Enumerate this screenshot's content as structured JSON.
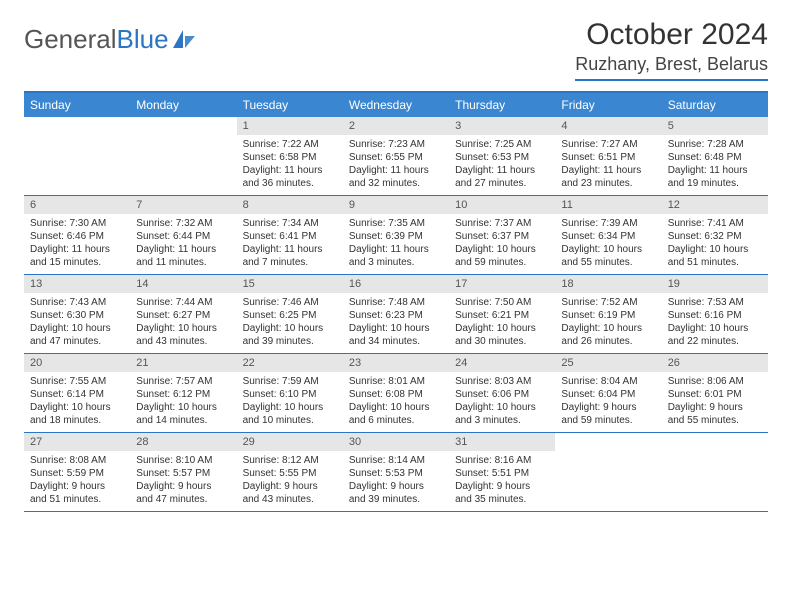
{
  "logo": {
    "general": "General",
    "blue": "Blue"
  },
  "title": "October 2024",
  "location": "Ruzhany, Brest, Belarus",
  "colors": {
    "accent": "#2b76c4",
    "header_bg": "#3b86d1",
    "date_bg": "#e6e6e6",
    "text": "#333333"
  },
  "day_headers": [
    "Sunday",
    "Monday",
    "Tuesday",
    "Wednesday",
    "Thursday",
    "Friday",
    "Saturday"
  ],
  "weeks": [
    [
      null,
      null,
      {
        "d": "1",
        "sr": "Sunrise: 7:22 AM",
        "ss": "Sunset: 6:58 PM",
        "dl": "Daylight: 11 hours and 36 minutes."
      },
      {
        "d": "2",
        "sr": "Sunrise: 7:23 AM",
        "ss": "Sunset: 6:55 PM",
        "dl": "Daylight: 11 hours and 32 minutes."
      },
      {
        "d": "3",
        "sr": "Sunrise: 7:25 AM",
        "ss": "Sunset: 6:53 PM",
        "dl": "Daylight: 11 hours and 27 minutes."
      },
      {
        "d": "4",
        "sr": "Sunrise: 7:27 AM",
        "ss": "Sunset: 6:51 PM",
        "dl": "Daylight: 11 hours and 23 minutes."
      },
      {
        "d": "5",
        "sr": "Sunrise: 7:28 AM",
        "ss": "Sunset: 6:48 PM",
        "dl": "Daylight: 11 hours and 19 minutes."
      }
    ],
    [
      {
        "d": "6",
        "sr": "Sunrise: 7:30 AM",
        "ss": "Sunset: 6:46 PM",
        "dl": "Daylight: 11 hours and 15 minutes."
      },
      {
        "d": "7",
        "sr": "Sunrise: 7:32 AM",
        "ss": "Sunset: 6:44 PM",
        "dl": "Daylight: 11 hours and 11 minutes."
      },
      {
        "d": "8",
        "sr": "Sunrise: 7:34 AM",
        "ss": "Sunset: 6:41 PM",
        "dl": "Daylight: 11 hours and 7 minutes."
      },
      {
        "d": "9",
        "sr": "Sunrise: 7:35 AM",
        "ss": "Sunset: 6:39 PM",
        "dl": "Daylight: 11 hours and 3 minutes."
      },
      {
        "d": "10",
        "sr": "Sunrise: 7:37 AM",
        "ss": "Sunset: 6:37 PM",
        "dl": "Daylight: 10 hours and 59 minutes."
      },
      {
        "d": "11",
        "sr": "Sunrise: 7:39 AM",
        "ss": "Sunset: 6:34 PM",
        "dl": "Daylight: 10 hours and 55 minutes."
      },
      {
        "d": "12",
        "sr": "Sunrise: 7:41 AM",
        "ss": "Sunset: 6:32 PM",
        "dl": "Daylight: 10 hours and 51 minutes."
      }
    ],
    [
      {
        "d": "13",
        "sr": "Sunrise: 7:43 AM",
        "ss": "Sunset: 6:30 PM",
        "dl": "Daylight: 10 hours and 47 minutes."
      },
      {
        "d": "14",
        "sr": "Sunrise: 7:44 AM",
        "ss": "Sunset: 6:27 PM",
        "dl": "Daylight: 10 hours and 43 minutes."
      },
      {
        "d": "15",
        "sr": "Sunrise: 7:46 AM",
        "ss": "Sunset: 6:25 PM",
        "dl": "Daylight: 10 hours and 39 minutes."
      },
      {
        "d": "16",
        "sr": "Sunrise: 7:48 AM",
        "ss": "Sunset: 6:23 PM",
        "dl": "Daylight: 10 hours and 34 minutes."
      },
      {
        "d": "17",
        "sr": "Sunrise: 7:50 AM",
        "ss": "Sunset: 6:21 PM",
        "dl": "Daylight: 10 hours and 30 minutes."
      },
      {
        "d": "18",
        "sr": "Sunrise: 7:52 AM",
        "ss": "Sunset: 6:19 PM",
        "dl": "Daylight: 10 hours and 26 minutes."
      },
      {
        "d": "19",
        "sr": "Sunrise: 7:53 AM",
        "ss": "Sunset: 6:16 PM",
        "dl": "Daylight: 10 hours and 22 minutes."
      }
    ],
    [
      {
        "d": "20",
        "sr": "Sunrise: 7:55 AM",
        "ss": "Sunset: 6:14 PM",
        "dl": "Daylight: 10 hours and 18 minutes."
      },
      {
        "d": "21",
        "sr": "Sunrise: 7:57 AM",
        "ss": "Sunset: 6:12 PM",
        "dl": "Daylight: 10 hours and 14 minutes."
      },
      {
        "d": "22",
        "sr": "Sunrise: 7:59 AM",
        "ss": "Sunset: 6:10 PM",
        "dl": "Daylight: 10 hours and 10 minutes."
      },
      {
        "d": "23",
        "sr": "Sunrise: 8:01 AM",
        "ss": "Sunset: 6:08 PM",
        "dl": "Daylight: 10 hours and 6 minutes."
      },
      {
        "d": "24",
        "sr": "Sunrise: 8:03 AM",
        "ss": "Sunset: 6:06 PM",
        "dl": "Daylight: 10 hours and 3 minutes."
      },
      {
        "d": "25",
        "sr": "Sunrise: 8:04 AM",
        "ss": "Sunset: 6:04 PM",
        "dl": "Daylight: 9 hours and 59 minutes."
      },
      {
        "d": "26",
        "sr": "Sunrise: 8:06 AM",
        "ss": "Sunset: 6:01 PM",
        "dl": "Daylight: 9 hours and 55 minutes."
      }
    ],
    [
      {
        "d": "27",
        "sr": "Sunrise: 8:08 AM",
        "ss": "Sunset: 5:59 PM",
        "dl": "Daylight: 9 hours and 51 minutes."
      },
      {
        "d": "28",
        "sr": "Sunrise: 8:10 AM",
        "ss": "Sunset: 5:57 PM",
        "dl": "Daylight: 9 hours and 47 minutes."
      },
      {
        "d": "29",
        "sr": "Sunrise: 8:12 AM",
        "ss": "Sunset: 5:55 PM",
        "dl": "Daylight: 9 hours and 43 minutes."
      },
      {
        "d": "30",
        "sr": "Sunrise: 8:14 AM",
        "ss": "Sunset: 5:53 PM",
        "dl": "Daylight: 9 hours and 39 minutes."
      },
      {
        "d": "31",
        "sr": "Sunrise: 8:16 AM",
        "ss": "Sunset: 5:51 PM",
        "dl": "Daylight: 9 hours and 35 minutes."
      },
      null,
      null
    ]
  ]
}
